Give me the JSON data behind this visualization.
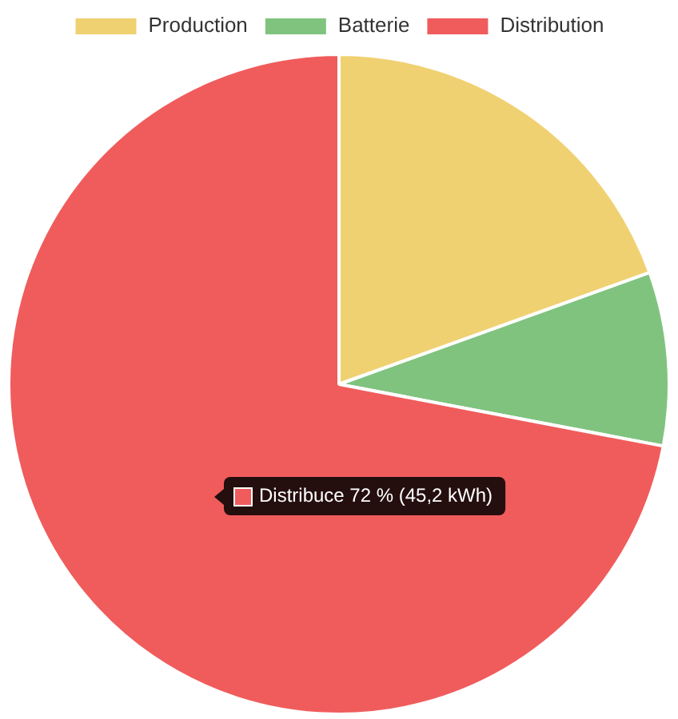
{
  "chart_data": {
    "type": "pie",
    "categories": [
      "Production",
      "Batterie",
      "Distribution"
    ],
    "values": [
      19.5,
      8.5,
      72
    ],
    "colors": [
      "#f0d172",
      "#80c37f",
      "#f05c5c"
    ],
    "legend": "top",
    "annotations": [
      "Distribuce 72 % (45,2 kWh)"
    ]
  }
}
